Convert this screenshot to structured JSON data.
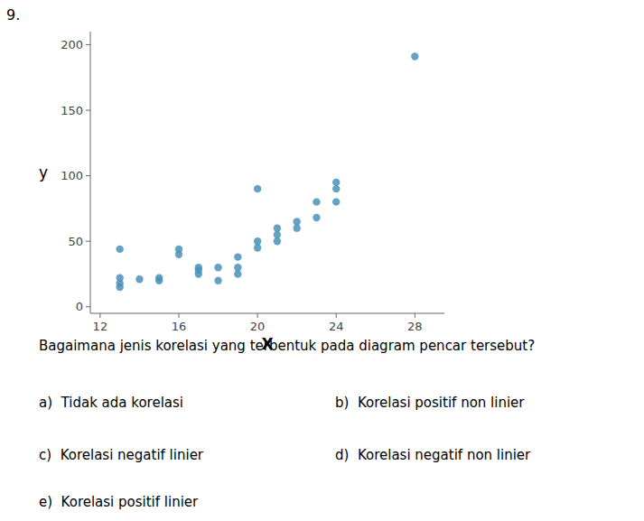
{
  "chart_data": {
    "type": "scatter",
    "x": [
      13,
      13,
      13,
      13,
      14,
      15,
      15,
      16,
      16,
      17,
      17,
      17,
      18,
      18,
      19,
      19,
      19,
      20,
      20,
      20,
      21,
      21,
      21,
      22,
      22,
      23,
      23,
      24,
      24,
      24,
      28
    ],
    "values": [
      44,
      22,
      18,
      15,
      21,
      22,
      20,
      44,
      40,
      30,
      28,
      25,
      30,
      20,
      38,
      30,
      25,
      90,
      50,
      45,
      55,
      50,
      60,
      65,
      60,
      80,
      68,
      80,
      95,
      90,
      191
    ],
    "color": "#4a90b8",
    "xlabel": "X",
    "ylabel": "y",
    "xlim": [
      11.5,
      29.5
    ],
    "ylim": [
      -5,
      210
    ],
    "xticks": [
      12,
      16,
      20,
      24,
      28
    ],
    "yticks": [
      0,
      50,
      100,
      150,
      200
    ],
    "grid": false,
    "annotations": [
      "9.",
      "Bagaimana jenis korelasi yang terbentuk pada diagram pencar tersebut?",
      "a)  Tidak ada korelasi",
      "b)  Korelasi positif non linier",
      "c)  Korelasi negatif linier",
      "d)  Korelasi negatif non linier",
      "e)  Korelasi positif linier"
    ]
  }
}
